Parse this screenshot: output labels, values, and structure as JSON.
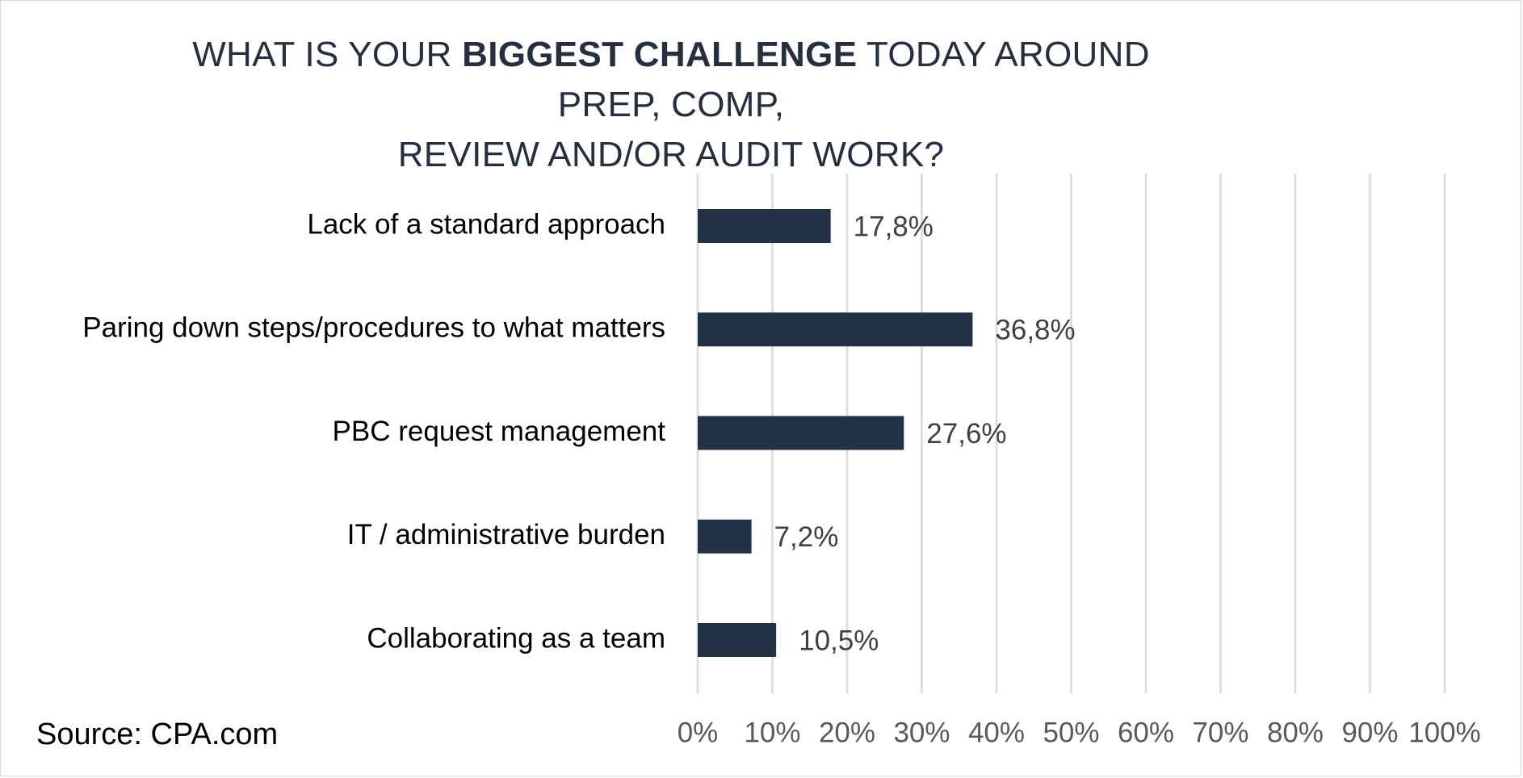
{
  "title": {
    "part1": "WHAT IS YOUR ",
    "bold": "BIGGEST CHALLENGE",
    "part2": " TODAY AROUND PREP, COMP,",
    "line2": "REVIEW AND/OR AUDIT WORK?"
  },
  "source": "Source: CPA.com",
  "colors": {
    "bar": "#243246",
    "grid": "#d9d9d9",
    "tick": "#595959",
    "label": "#000000",
    "value_label": "#404040"
  },
  "chart_data": {
    "type": "bar",
    "orientation": "horizontal",
    "categories": [
      "Lack of a standard approach",
      "Paring down steps/procedures to what matters",
      "PBC request management",
      "IT / administrative burden",
      "Collaborating as a team"
    ],
    "values": [
      17.8,
      36.8,
      27.6,
      7.2,
      10.5
    ],
    "value_labels": [
      "17,8%",
      "36,8%",
      "27,6%",
      "7,2%",
      "10,5%"
    ],
    "xlim": [
      0,
      100
    ],
    "xticks": [
      0,
      10,
      20,
      30,
      40,
      50,
      60,
      70,
      80,
      90,
      100
    ],
    "xtick_labels": [
      "0%",
      "10%",
      "20%",
      "30%",
      "40%",
      "50%",
      "60%",
      "70%",
      "80%",
      "90%",
      "100%"
    ],
    "grid": true,
    "legend": false
  }
}
